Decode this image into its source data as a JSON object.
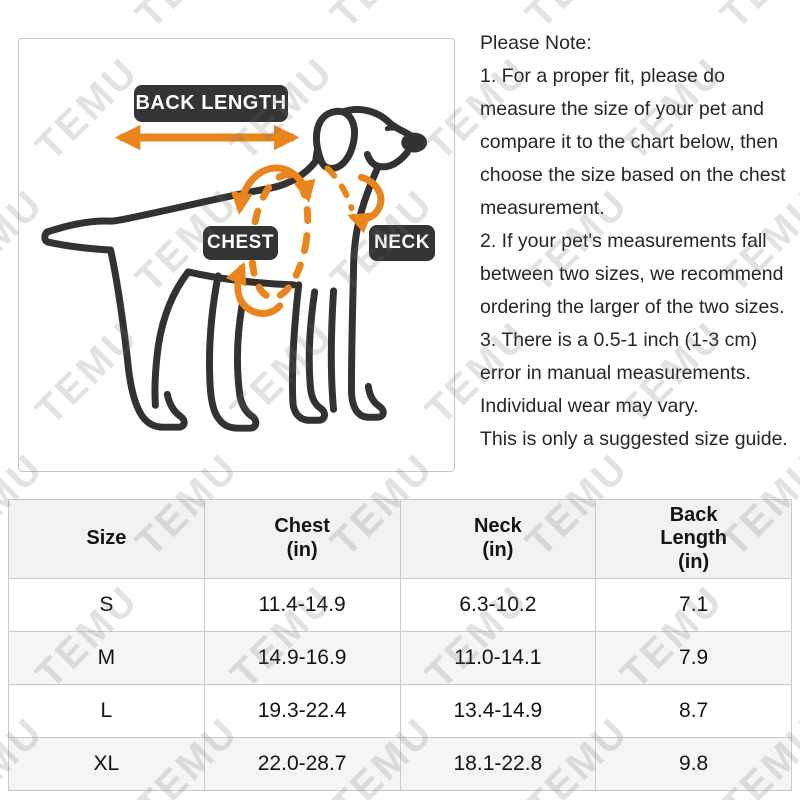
{
  "watermark": {
    "text": "TEMU"
  },
  "diagram": {
    "labels": {
      "back_length": "BACK LENGTH",
      "chest": "CHEST",
      "neck": "NECK"
    },
    "colors": {
      "accent_orange": "#E8861D",
      "outline_dark": "#323232",
      "label_bg": "#343434"
    }
  },
  "notes": {
    "title": "Please Note:",
    "items": [
      "1. For a proper fit, please do measure the size of your pet and compare it to the chart below, then choose the size based on the chest measurement.",
      "2. If your pet's measurements fall between two sizes, we recommend ordering the larger of the two sizes.",
      "3. There is a 0.5-1 inch (1-3 cm) error in manual measurements. Individual wear may vary.",
      "This is only a suggested size guide."
    ]
  },
  "size_table": {
    "headers": [
      "Size",
      "Chest\n(in)",
      "Neck\n(in)",
      "Back\nLength\n(in)"
    ],
    "rows": [
      [
        "S",
        "11.4-14.9",
        "6.3-10.2",
        "7.1"
      ],
      [
        "M",
        "14.9-16.9",
        "11.0-14.1",
        "7.9"
      ],
      [
        "L",
        "19.3-22.4",
        "13.4-14.9",
        "8.7"
      ],
      [
        "XL",
        "22.0-28.7",
        "18.1-22.8",
        "9.8"
      ]
    ]
  }
}
